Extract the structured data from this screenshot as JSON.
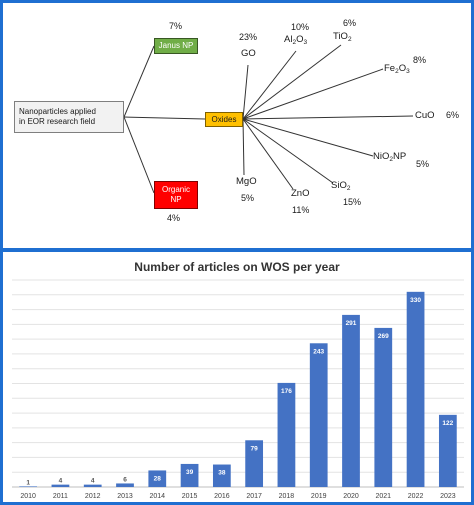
{
  "diagram": {
    "root_label_line1": "Nanoparticles applied",
    "root_label_line2": "in EOR research field",
    "janus": {
      "label": "Janus NP",
      "percent": "7%"
    },
    "organic": {
      "label_line1": "Organic",
      "label_line2": "NP",
      "percent": "4%"
    },
    "oxides": {
      "label": "Oxides"
    },
    "oxide_items": [
      {
        "name": "GO",
        "percent": "23%"
      },
      {
        "name": "Al2O3",
        "base": "Al",
        "sub1": "2",
        "mid": "O",
        "sub2": "3",
        "percent": "10%"
      },
      {
        "name": "TiO2",
        "base": "TiO",
        "sub1": "2",
        "percent": "6%"
      },
      {
        "name": "Fe2O3",
        "base": "Fe",
        "sub1": "2",
        "mid": "O",
        "sub2": "3",
        "percent": "8%"
      },
      {
        "name": "CuO",
        "percent": "6%"
      },
      {
        "name": "NiO2NP",
        "base": "NiO",
        "sub1": "2",
        "mid": "NP",
        "percent": "5%"
      },
      {
        "name": "SiO2",
        "base": "SiO",
        "sub1": "2",
        "percent": "15%"
      },
      {
        "name": "ZnO",
        "percent": "11%"
      },
      {
        "name": "MgO",
        "percent": "5%"
      }
    ],
    "colors": {
      "janus": "#70ad47",
      "organic": "#ff0000",
      "oxides": "#ffc000",
      "frame": "#1f6fd1"
    }
  },
  "chart_data": {
    "type": "bar",
    "title": "Number of articles on WOS per year",
    "categories": [
      "2010",
      "2011",
      "2012",
      "2013",
      "2014",
      "2015",
      "2016",
      "2017",
      "2018",
      "2019",
      "2020",
      "2021",
      "2022",
      "2023"
    ],
    "values": [
      1,
      4,
      4,
      6,
      28,
      39,
      38,
      79,
      176,
      243,
      291,
      269,
      330,
      122
    ],
    "ylim": [
      0,
      350
    ],
    "grid": true,
    "bar_color": "#4472c4"
  }
}
